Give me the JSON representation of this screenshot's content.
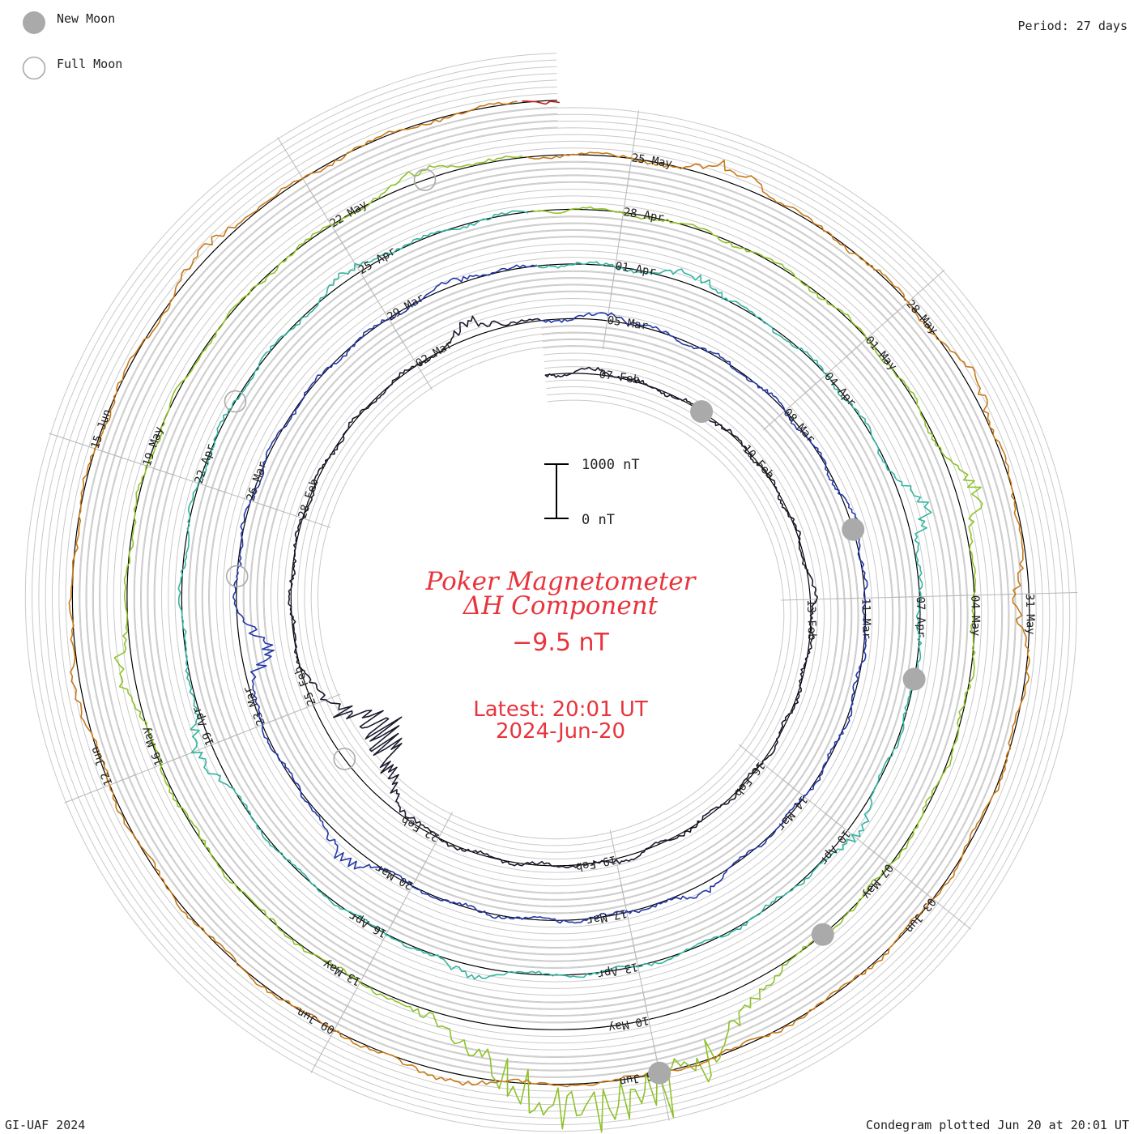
{
  "legend": {
    "new_moon_label": "New Moon",
    "full_moon_label": "Full Moon",
    "new_moon_color": "#aaaaaa",
    "full_moon_color": "#aaaaaa"
  },
  "header": {
    "period_label": "Period: 27 days"
  },
  "footer": {
    "credit": "GI-UAF 2024",
    "plotted": "Condegram plotted Jun 20 at 20:01 UT"
  },
  "center": {
    "title_line1": "Poker Magnetometer",
    "title_line2": "ΔH Component",
    "value": "−9.5 nT",
    "latest_line1": "Latest: 20:01 UT",
    "latest_line2": "2024-Jun-20",
    "scale_top": "1000 nT",
    "scale_bottom": "0 nT"
  },
  "chart_data": {
    "type": "line",
    "projection": "spiral condegram",
    "period_days": 27,
    "start_date": "2024-02-06",
    "end_date": "2024-06-20",
    "units": "nT",
    "scale_bar_nT": [
      0,
      1000
    ],
    "latest_value_nT": -9.5,
    "grid": true,
    "date_labels": [
      "07-Feb",
      "10-Feb",
      "13-Feb",
      "16-Feb",
      "19-Feb",
      "22-Feb",
      "25-Feb",
      "28-Feb",
      "02-Mar",
      "05-Mar",
      "08-Mar",
      "11-Mar",
      "14-Mar",
      "17-Mar",
      "20-Mar",
      "23-Mar",
      "26-Mar",
      "29-Mar",
      "01-Apr",
      "04-Apr",
      "07-Apr",
      "10-Apr",
      "13-Apr",
      "16-Apr",
      "19-Apr",
      "22-Apr",
      "25-Apr",
      "28-Apr",
      "01-May",
      "04-May",
      "07-May",
      "10-May",
      "13-May",
      "16-May",
      "19-May",
      "22-May",
      "25-May",
      "28-May",
      "31-May",
      "03-Jun",
      "06-Jun",
      "09-Jun",
      "12-Jun",
      "15-Jun"
    ],
    "new_moons": [
      "2024-02-09",
      "2024-03-10",
      "2024-04-08",
      "2024-05-08",
      "2024-06-06"
    ],
    "full_moons": [
      "2024-02-24",
      "2024-03-25",
      "2024-04-23",
      "2024-05-23"
    ],
    "series_colors": [
      "#1a1a2e",
      "#1f1f7a",
      "#2438a8",
      "#2b8bb5",
      "#33b5a0",
      "#4cb84c",
      "#8fc22a",
      "#b5a81a",
      "#c87a18",
      "#c84a14",
      "#c01a1a"
    ],
    "disturbances": [
      {
        "date": "2024-02-07",
        "dH_nT": -90
      },
      {
        "date": "2024-02-13",
        "dH_nT": -80
      },
      {
        "date": "2024-02-19",
        "dH_nT": -60
      },
      {
        "date": "2024-02-24",
        "dH_nT": 900
      },
      {
        "date": "2024-03-03",
        "dH_nT": -280
      },
      {
        "date": "2024-03-05",
        "dH_nT": -120
      },
      {
        "date": "2024-03-10",
        "dH_nT": -110
      },
      {
        "date": "2024-03-16",
        "dH_nT": -150
      },
      {
        "date": "2024-03-21",
        "dH_nT": -300
      },
      {
        "date": "2024-03-24",
        "dH_nT": 500
      },
      {
        "date": "2024-03-30",
        "dH_nT": -90
      },
      {
        "date": "2024-04-02",
        "dH_nT": -200
      },
      {
        "date": "2024-04-06",
        "dH_nT": -350
      },
      {
        "date": "2024-04-10",
        "dH_nT": -200
      },
      {
        "date": "2024-04-15",
        "dH_nT": -180
      },
      {
        "date": "2024-04-19",
        "dH_nT": -300
      },
      {
        "date": "2024-04-25",
        "dH_nT": -150
      },
      {
        "date": "2024-05-03",
        "dH_nT": -350
      },
      {
        "date": "2024-05-10",
        "dH_nT": -1200
      },
      {
        "date": "2024-05-11",
        "dH_nT": -1000
      },
      {
        "date": "2024-05-17",
        "dH_nT": -250
      },
      {
        "date": "2024-05-23",
        "dH_nT": -200
      },
      {
        "date": "2024-05-26",
        "dH_nT": -250
      },
      {
        "date": "2024-05-29",
        "dH_nT": -200
      },
      {
        "date": "2024-05-31",
        "dH_nT": 220
      },
      {
        "date": "2024-06-08",
        "dH_nT": -180
      },
      {
        "date": "2024-06-13",
        "dH_nT": -120
      },
      {
        "date": "2024-06-17",
        "dH_nT": -200
      }
    ]
  }
}
